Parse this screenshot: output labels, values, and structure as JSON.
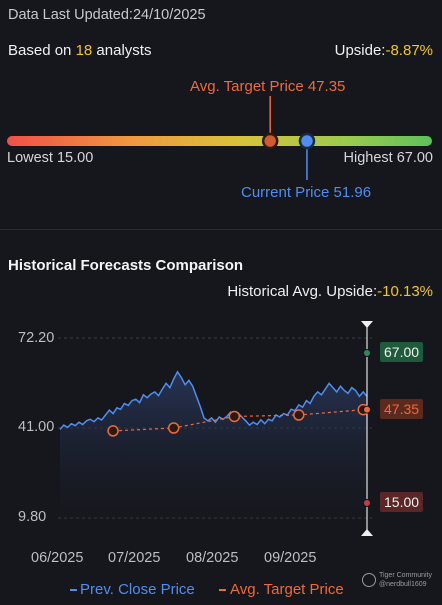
{
  "header": {
    "updated_label": "Data Last Updated:",
    "updated_date": "24/10/2025",
    "based_on_prefix": "Based on ",
    "analyst_count": "18",
    "based_on_suffix": " analysts",
    "upside_label": "Upside:",
    "upside_value": "-8.87%"
  },
  "price_range": {
    "avg_target_label": "Avg. Target Price 47.35",
    "lowest_label": "Lowest 15.00",
    "highest_label": "Highest 67.00",
    "current_label": "Current Price 51.96",
    "low": 15.0,
    "high": 67.0,
    "avg_target": 47.35,
    "current": 51.96
  },
  "history": {
    "title": "Historical Forecasts Comparison",
    "upside_label": "Historical Avg. Upside:",
    "upside_value": "-10.13%"
  },
  "chart_data": {
    "type": "line",
    "y_ticks": [
      "72.20",
      "41.00",
      "9.80"
    ],
    "x_ticks": [
      "06/2025",
      "07/2025",
      "08/2025",
      "09/2025"
    ],
    "ylim": [
      9.8,
      72.2
    ],
    "series": [
      {
        "name": "Prev. Close Price",
        "color": "#4e8ef0",
        "values": [
          40.5,
          42.0,
          41.2,
          42.5,
          41.8,
          43.0,
          42.2,
          43.5,
          44.0,
          43.2,
          44.5,
          43.8,
          45.5,
          47.2,
          46.0,
          48.0,
          47.5,
          49.5,
          48.8,
          50.5,
          51.0,
          49.8,
          52.5,
          51.5,
          52.8,
          53.5,
          52.2,
          54.5,
          56.5,
          55.0,
          58.0,
          60.5,
          58.5,
          56.0,
          57.5,
          55.5,
          52.0,
          48.5,
          44.5,
          43.5,
          44.5,
          43.0,
          44.8,
          44.0,
          45.0,
          46.5,
          45.5,
          46.2,
          44.8,
          43.5,
          42.0,
          43.0,
          42.2,
          43.8,
          42.5,
          44.0,
          43.5,
          45.5,
          44.8,
          46.0,
          45.5,
          47.5,
          47.0,
          49.0,
          48.2,
          50.5,
          49.5,
          52.0,
          53.5,
          52.5,
          54.5,
          56.5,
          55.0,
          53.5,
          55.5,
          54.0,
          53.0,
          55.0,
          54.0,
          52.0,
          53.5,
          51.96
        ]
      },
      {
        "name": "Avg. Target Price",
        "color": "#f06a37",
        "points": [
          [
            14,
            40.0
          ],
          [
            30,
            41.0
          ],
          [
            46,
            45.0
          ],
          [
            63,
            45.5
          ],
          [
            80,
            47.35
          ]
        ]
      }
    ],
    "forecast": {
      "high": 67.0,
      "avg": 47.35,
      "low": 15.0
    },
    "forecast_labels": {
      "high": "67.00",
      "avg": "47.35",
      "low": "15.00"
    }
  },
  "legend": {
    "close_label": "Prev. Close Price",
    "target_label": "Avg. Target Price"
  },
  "watermark": {
    "line1": "Tiger Community",
    "line2": "@nerdbull1609"
  },
  "colors": {
    "accent_yellow": "#f5c518",
    "target_orange": "#f06a37",
    "current_blue": "#4e8ef0",
    "high_green": "#2e8b57",
    "low_red": "#6b2a2a"
  }
}
